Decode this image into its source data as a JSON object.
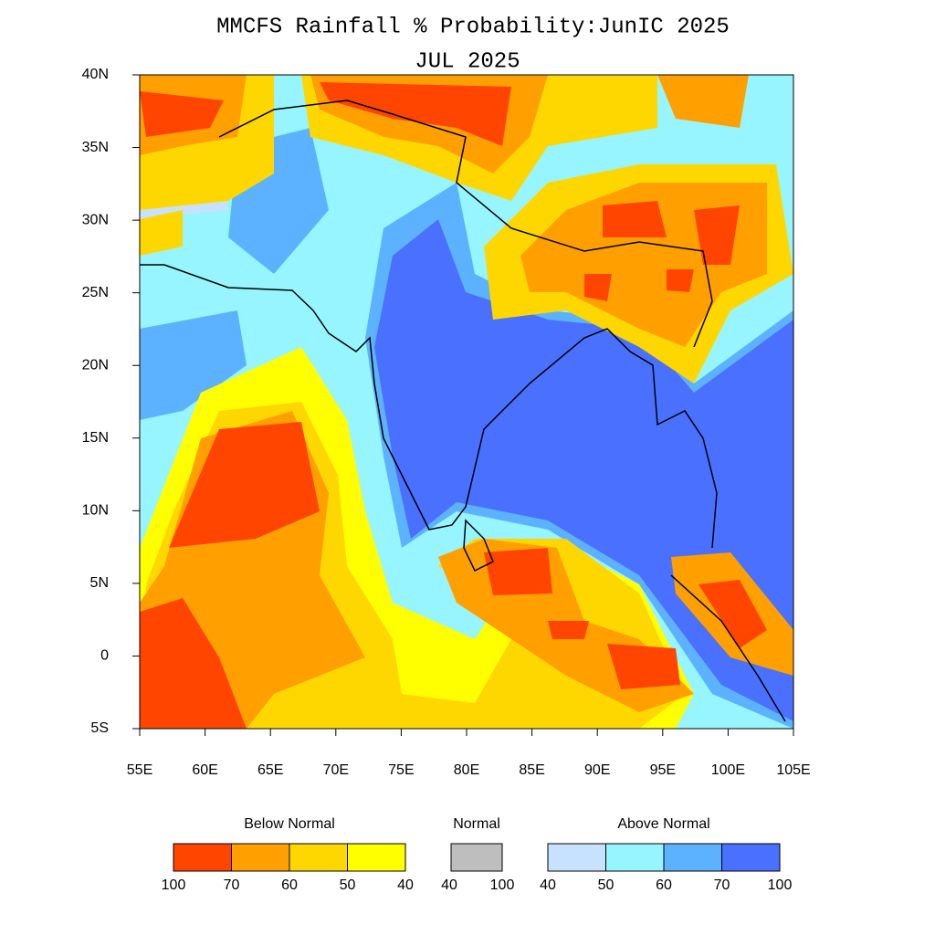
{
  "title": "MMCFS Rainfall % Probability:JunIC 2025",
  "subtitle": "JUL 2025",
  "map": {
    "xlim": [
      55,
      105
    ],
    "ylim": [
      -5,
      40
    ],
    "xticks": [
      {
        "value": 55,
        "label": "55E"
      },
      {
        "value": 60,
        "label": "60E"
      },
      {
        "value": 65,
        "label": "65E"
      },
      {
        "value": 70,
        "label": "70E"
      },
      {
        "value": 75,
        "label": "75E"
      },
      {
        "value": 80,
        "label": "80E"
      },
      {
        "value": 85,
        "label": "85E"
      },
      {
        "value": 90,
        "label": "90E"
      },
      {
        "value": 95,
        "label": "95E"
      },
      {
        "value": 100,
        "label": "100E"
      },
      {
        "value": 105,
        "label": "105E"
      }
    ],
    "yticks": [
      {
        "value": -5,
        "label": "5S"
      },
      0,
      {
        "value": 5,
        "label": "5N"
      },
      {
        "value": 10,
        "label": "10N"
      },
      {
        "value": 15,
        "label": "15N"
      },
      {
        "value": 20,
        "label": "20N"
      },
      {
        "value": 25,
        "label": "25N"
      },
      {
        "value": 30,
        "label": "30N"
      },
      {
        "value": 35,
        "label": "35N"
      },
      {
        "value": 40,
        "label": "40N"
      }
    ]
  },
  "legend": {
    "groups": [
      {
        "title": "Below Normal",
        "bounds": [
          100,
          70,
          60,
          50,
          40
        ],
        "colors": [
          "#ff4500",
          "#ffa000",
          "#ffd700",
          "#ffff00"
        ]
      },
      {
        "title": "Normal",
        "bounds": [
          40,
          100
        ],
        "colors": [
          "#bebebe"
        ]
      },
      {
        "title": "Above Normal",
        "bounds": [
          40,
          50,
          60,
          70,
          100
        ],
        "colors": [
          "#c6e2ff",
          "#97f5ff",
          "#5cb2ff",
          "#4a70ff"
        ]
      }
    ]
  }
}
